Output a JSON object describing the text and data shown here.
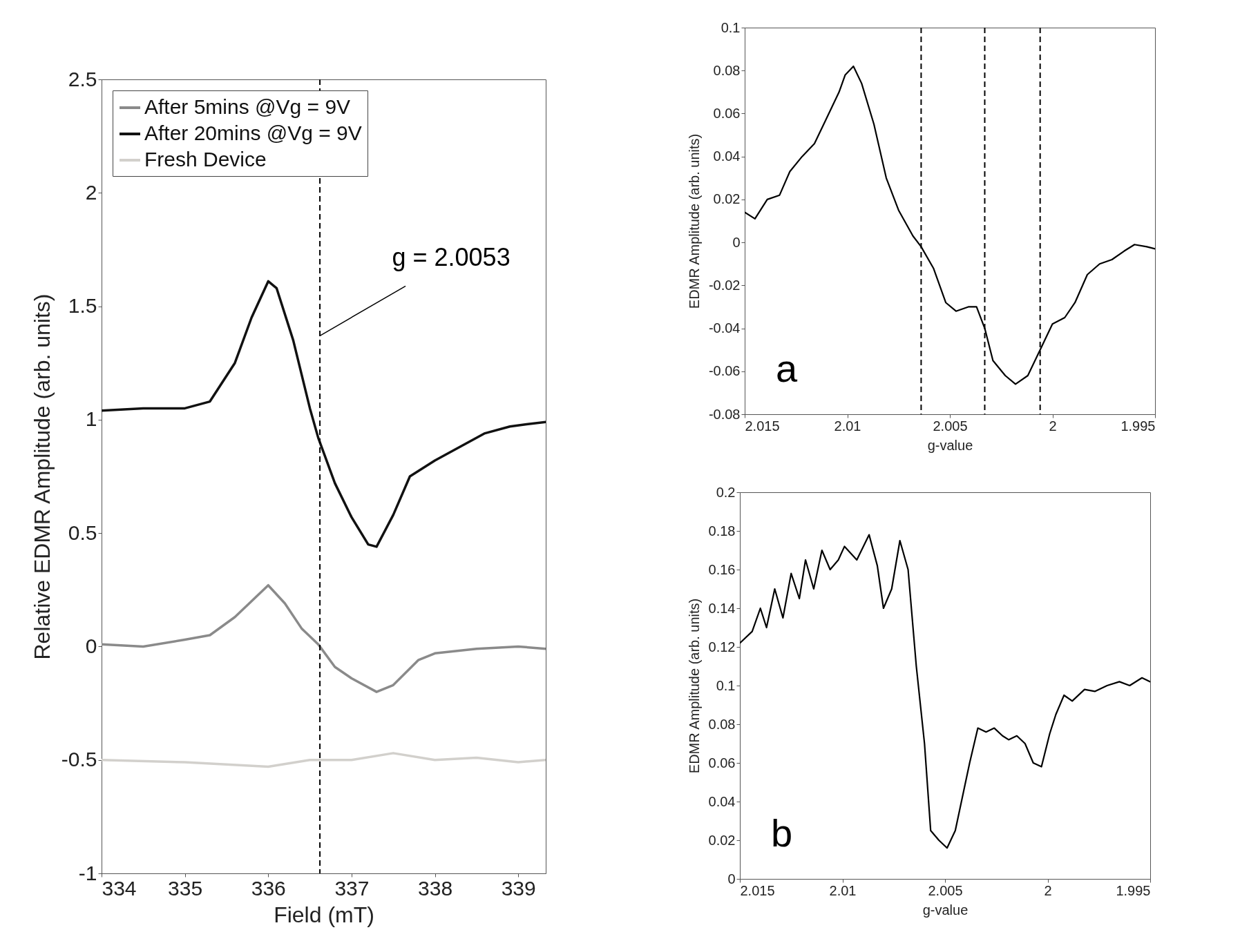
{
  "chart_data": [
    {
      "type": "line",
      "xlabel": "Field (mT)",
      "ylabel": "Relative EDMR Amplitude (arb. units)",
      "xlim": [
        334,
        339.33
      ],
      "xticks": [
        334,
        335,
        336,
        337,
        338,
        339
      ],
      "ylim": [
        -1,
        2.5
      ],
      "yticks": [
        -1,
        -0.5,
        0,
        0.5,
        1,
        1.5,
        2,
        2.5
      ],
      "grid": false,
      "legend": "top left",
      "series": [
        {
          "name": "After 5mins @Vg = 9V",
          "color": "#8a8a8a",
          "x": [
            334,
            334.5,
            335,
            335.3,
            335.6,
            335.8,
            336,
            336.2,
            336.4,
            336.6,
            336.8,
            337,
            337.3,
            337.5,
            337.8,
            338,
            338.5,
            339,
            339.33
          ],
          "values": [
            0.01,
            0.0,
            0.03,
            0.05,
            0.13,
            0.2,
            0.27,
            0.19,
            0.08,
            0.01,
            -0.09,
            -0.14,
            -0.2,
            -0.17,
            -0.06,
            -0.03,
            -0.01,
            0.0,
            -0.01
          ]
        },
        {
          "name": "After 20mins @Vg = 9V",
          "color": "#111111",
          "x": [
            334,
            334.5,
            335,
            335.3,
            335.6,
            335.8,
            336,
            336.1,
            336.3,
            336.5,
            336.6,
            336.8,
            337,
            337.2,
            337.3,
            337.5,
            337.7,
            338,
            338.3,
            338.6,
            338.9,
            339.1,
            339.33
          ],
          "values": [
            1.04,
            1.05,
            1.05,
            1.08,
            1.25,
            1.45,
            1.61,
            1.58,
            1.35,
            1.05,
            0.92,
            0.72,
            0.57,
            0.45,
            0.44,
            0.58,
            0.75,
            0.82,
            0.88,
            0.94,
            0.97,
            0.98,
            0.99
          ]
        },
        {
          "name": "Fresh Device",
          "color": "#d2d0cc",
          "x": [
            334,
            335,
            336,
            336.5,
            337,
            337.5,
            338,
            338.5,
            339,
            339.33
          ],
          "values": [
            -0.5,
            -0.51,
            -0.53,
            -0.5,
            -0.5,
            -0.47,
            -0.5,
            -0.49,
            -0.51,
            -0.5
          ]
        }
      ],
      "ref_lines": [
        {
          "axis": "x",
          "value": 336.62,
          "color": "#000000",
          "line_style": "dashed"
        }
      ],
      "annotations": [
        {
          "text": "g = 2.0053",
          "x": 336.62,
          "y": 1.37
        }
      ]
    },
    {
      "type": "line",
      "xlabel": "g-value",
      "ylabel": "EDMR Amplitude (arb. units)",
      "xlim": [
        2.015,
        1.995
      ],
      "xticks": [
        2.015,
        2.01,
        2.005,
        2,
        1.995
      ],
      "ylim": [
        -0.08,
        0.1
      ],
      "yticks": [
        -0.08,
        -0.06,
        -0.04,
        -0.02,
        0,
        0.02,
        0.04,
        0.06,
        0.08,
        0.1
      ],
      "grid": false,
      "series": [
        {
          "color": "#000000",
          "x": [
            2.015,
            2.0145,
            2.0139,
            2.0133,
            2.0128,
            2.0122,
            2.0116,
            2.011,
            2.0104,
            2.0101,
            2.0097,
            2.0093,
            2.0087,
            2.0081,
            2.0075,
            2.0068,
            2.0064,
            2.0058,
            2.0052,
            2.0047,
            2.0041,
            2.0037,
            2.0033,
            2.0029,
            2.0023,
            2.0018,
            2.0012,
            2.0006,
            2.0,
            1.9994,
            1.9989,
            1.9983,
            1.9977,
            1.9971,
            1.9965,
            1.996,
            1.9954,
            1.995
          ],
          "values": [
            0.014,
            0.011,
            0.02,
            0.022,
            0.033,
            0.04,
            0.046,
            0.058,
            0.07,
            0.078,
            0.082,
            0.074,
            0.055,
            0.03,
            0.015,
            0.003,
            -0.002,
            -0.012,
            -0.028,
            -0.032,
            -0.03,
            -0.03,
            -0.04,
            -0.055,
            -0.062,
            -0.066,
            -0.062,
            -0.05,
            -0.038,
            -0.035,
            -0.028,
            -0.015,
            -0.01,
            -0.008,
            -0.004,
            -0.001,
            -0.002,
            -0.003
          ]
        }
      ],
      "ref_lines": [
        {
          "axis": "x",
          "value": 2.0064,
          "color": "#000000",
          "line_style": "dashed"
        },
        {
          "axis": "x",
          "value": 2.0033,
          "color": "#000000",
          "line_style": "dashed"
        },
        {
          "axis": "x",
          "value": 2.0006,
          "color": "#000000",
          "line_style": "dashed"
        }
      ],
      "annotations": [
        "a"
      ]
    },
    {
      "type": "line",
      "xlabel": "g-value",
      "ylabel": "EDMR Amplitude (arb. units)",
      "xlim": [
        2.015,
        1.995
      ],
      "xticks": [
        2.015,
        2.01,
        2.005,
        2,
        1.995
      ],
      "ylim": [
        0,
        0.2
      ],
      "yticks": [
        0,
        0.02,
        0.04,
        0.06,
        0.08,
        0.1,
        0.12,
        0.14,
        0.16,
        0.18,
        0.2
      ],
      "grid": false,
      "series": [
        {
          "color": "#000000",
          "x": [
            2.015,
            2.0144,
            2.014,
            2.0137,
            2.0133,
            2.0129,
            2.0125,
            2.0121,
            2.0118,
            2.0114,
            2.011,
            2.0106,
            2.0102,
            2.0099,
            2.0093,
            2.0087,
            2.0083,
            2.008,
            2.0076,
            2.0072,
            2.0068,
            2.0064,
            2.006,
            2.0057,
            2.0053,
            2.0049,
            2.0045,
            2.0041,
            2.0038,
            2.0034,
            2.003,
            2.0026,
            2.0022,
            2.0019,
            2.0015,
            2.0011,
            2.0007,
            2.0003,
            1.9999,
            1.9996,
            1.9992,
            1.9988,
            1.9982,
            1.9977,
            1.9971,
            1.9965,
            1.996,
            1.9954,
            1.995
          ],
          "values": [
            0.122,
            0.128,
            0.14,
            0.13,
            0.15,
            0.135,
            0.158,
            0.145,
            0.165,
            0.15,
            0.17,
            0.16,
            0.165,
            0.172,
            0.165,
            0.178,
            0.162,
            0.14,
            0.15,
            0.175,
            0.16,
            0.11,
            0.07,
            0.025,
            0.02,
            0.016,
            0.025,
            0.045,
            0.06,
            0.078,
            0.076,
            0.078,
            0.074,
            0.072,
            0.074,
            0.07,
            0.06,
            0.058,
            0.075,
            0.085,
            0.095,
            0.092,
            0.098,
            0.097,
            0.1,
            0.102,
            0.1,
            0.104,
            0.102
          ]
        }
      ],
      "annotations": [
        "b"
      ]
    }
  ]
}
